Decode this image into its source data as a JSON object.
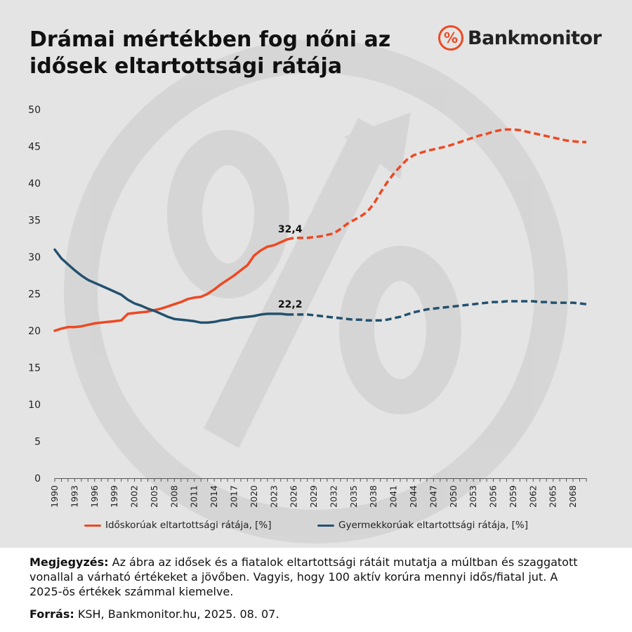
{
  "header": {
    "title_line1": "Drámai mértékben fog nőni az",
    "title_line2": "idősek eltartottsági rátája"
  },
  "brand": {
    "symbol": "%",
    "name": "Bankmonitor",
    "accent": "#ee4822"
  },
  "chart_data": {
    "type": "line",
    "title": "Drámai mértékben fog nőni az idősek eltartottsági rátája",
    "ylim": [
      0,
      50
    ],
    "yticks": [
      0,
      5,
      10,
      15,
      20,
      25,
      30,
      35,
      40,
      45,
      50
    ],
    "xlim": [
      1990,
      2070
    ],
    "xticks": [
      1990,
      1993,
      1996,
      1999,
      2002,
      2005,
      2008,
      2011,
      2014,
      2017,
      2020,
      2023,
      2026,
      2029,
      2032,
      2035,
      2038,
      2041,
      2044,
      2047,
      2050,
      2053,
      2056,
      2059,
      2062,
      2065,
      2068
    ],
    "grid": false,
    "legend_position": "bottom",
    "historical_until": 2025,
    "projection_style": "dashed",
    "series": [
      {
        "name": "Időskorúak eltartottsági rátája, [%]",
        "color": "#ee4822",
        "x": [
          1990,
          1991,
          1992,
          1993,
          1994,
          1995,
          1996,
          1997,
          1998,
          1999,
          2000,
          2001,
          2002,
          2003,
          2004,
          2005,
          2006,
          2007,
          2008,
          2009,
          2010,
          2011,
          2012,
          2013,
          2014,
          2015,
          2016,
          2017,
          2018,
          2019,
          2020,
          2021,
          2022,
          2023,
          2024,
          2025,
          2026,
          2027,
          2028,
          2029,
          2030,
          2031,
          2032,
          2033,
          2034,
          2035,
          2036,
          2037,
          2038,
          2039,
          2040,
          2041,
          2042,
          2043,
          2044,
          2045,
          2046,
          2047,
          2048,
          2049,
          2050,
          2051,
          2052,
          2053,
          2054,
          2055,
          2056,
          2057,
          2058,
          2059,
          2060,
          2061,
          2062,
          2063,
          2064,
          2065,
          2066,
          2067,
          2068,
          2069,
          2070
        ],
        "y": [
          20.0,
          20.3,
          20.5,
          20.5,
          20.6,
          20.8,
          21.0,
          21.1,
          21.2,
          21.3,
          21.4,
          22.3,
          22.4,
          22.5,
          22.6,
          22.8,
          23.0,
          23.3,
          23.6,
          23.9,
          24.3,
          24.5,
          24.6,
          25.0,
          25.6,
          26.3,
          26.9,
          27.5,
          28.2,
          28.9,
          30.2,
          30.9,
          31.4,
          31.6,
          32.0,
          32.4,
          32.6,
          32.6,
          32.6,
          32.7,
          32.8,
          33.0,
          33.2,
          33.8,
          34.5,
          35.0,
          35.5,
          36.1,
          37.2,
          38.7,
          40.1,
          41.3,
          42.3,
          43.2,
          43.8,
          44.1,
          44.4,
          44.6,
          44.8,
          45.0,
          45.3,
          45.6,
          45.9,
          46.2,
          46.5,
          46.7,
          47.0,
          47.2,
          47.3,
          47.3,
          47.2,
          47.0,
          46.8,
          46.6,
          46.4,
          46.2,
          46.0,
          45.8,
          45.7,
          45.6,
          45.6
        ]
      },
      {
        "name": "Gyermekkorúak eltartottsági rátája, [%]",
        "color": "#23516f",
        "x": [
          1990,
          1991,
          1992,
          1993,
          1994,
          1995,
          1996,
          1997,
          1998,
          1999,
          2000,
          2001,
          2002,
          2003,
          2004,
          2005,
          2006,
          2007,
          2008,
          2009,
          2010,
          2011,
          2012,
          2013,
          2014,
          2015,
          2016,
          2017,
          2018,
          2019,
          2020,
          2021,
          2022,
          2023,
          2024,
          2025,
          2026,
          2027,
          2028,
          2029,
          2030,
          2031,
          2032,
          2033,
          2034,
          2035,
          2036,
          2037,
          2038,
          2039,
          2040,
          2041,
          2042,
          2043,
          2044,
          2045,
          2046,
          2047,
          2048,
          2049,
          2050,
          2051,
          2052,
          2053,
          2054,
          2055,
          2056,
          2057,
          2058,
          2059,
          2060,
          2061,
          2062,
          2063,
          2064,
          2065,
          2066,
          2067,
          2068,
          2069,
          2070
        ],
        "y": [
          31.0,
          29.8,
          29.0,
          28.2,
          27.5,
          26.9,
          26.5,
          26.1,
          25.7,
          25.3,
          24.9,
          24.2,
          23.7,
          23.4,
          23.0,
          22.7,
          22.3,
          21.9,
          21.6,
          21.5,
          21.4,
          21.3,
          21.1,
          21.1,
          21.2,
          21.4,
          21.5,
          21.7,
          21.8,
          21.9,
          22.0,
          22.2,
          22.3,
          22.3,
          22.3,
          22.2,
          22.2,
          22.2,
          22.2,
          22.1,
          22.0,
          21.9,
          21.8,
          21.7,
          21.6,
          21.5,
          21.5,
          21.4,
          21.4,
          21.4,
          21.5,
          21.7,
          21.9,
          22.2,
          22.5,
          22.7,
          22.9,
          23.0,
          23.1,
          23.2,
          23.3,
          23.4,
          23.5,
          23.6,
          23.7,
          23.8,
          23.9,
          23.9,
          24.0,
          24.0,
          24.0,
          24.0,
          24.0,
          23.9,
          23.9,
          23.8,
          23.8,
          23.8,
          23.8,
          23.7,
          23.6
        ]
      }
    ],
    "annotations": [
      {
        "x": 2025,
        "y": 32.4,
        "text": "32,4"
      },
      {
        "x": 2025,
        "y": 22.2,
        "text": "22,2"
      }
    ]
  },
  "footer": {
    "note_label": "Megjegyzés:",
    "note_text": " Az ábra az idősek és a fiatalok eltartottsági rátáit mutatja a múltban és szaggatott vonallal a várható értékeket a jövőben. Vagyis, hogy 100 aktív korúra mennyi idős/fiatal jut. A 2025-ös értékek számmal kiemelve.",
    "source_label": "Forrás:",
    "source_text": " KSH, Bankmonitor.hu, 2025. 08. 07."
  }
}
